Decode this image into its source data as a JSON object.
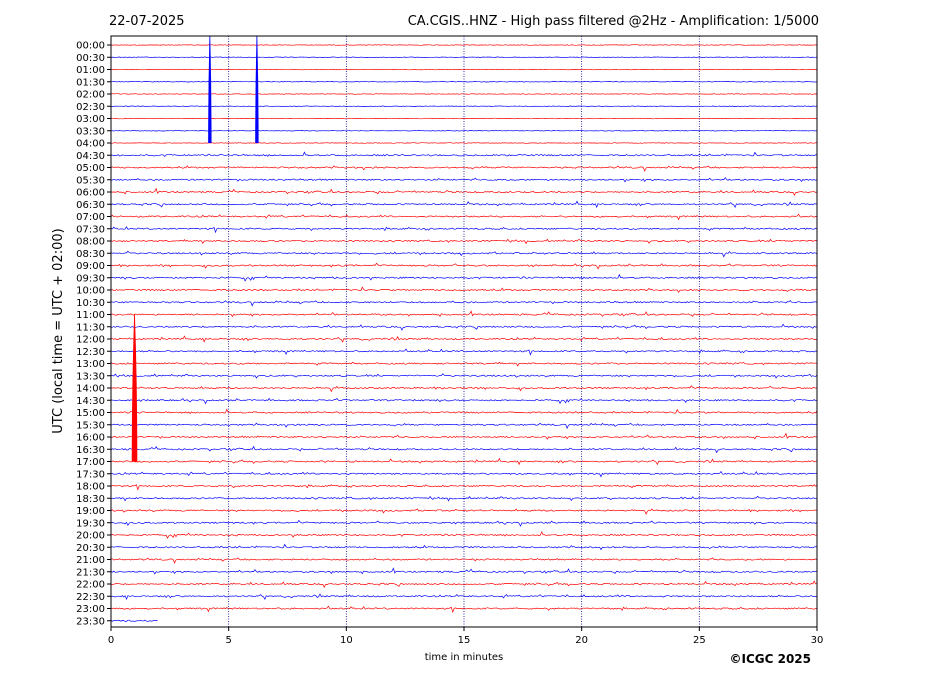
{
  "header": {
    "date": "22-07-2025",
    "title": "CA.CGIS..HNZ - High pass filtered @2Hz - Amplification: 1/5000"
  },
  "footer": {
    "copyright": "©ICGC 2025"
  },
  "colors": {
    "trace_a": "#ff0000",
    "trace_b": "#0000ff",
    "gridline": "#00008b",
    "frame": "#000000"
  },
  "chart_data": {
    "type": "line",
    "title": "CA.CGIS..HNZ - High pass filtered @2Hz - Amplification: 1/5000",
    "xlabel": "time in minutes",
    "ylabel": "UTC (local time = UTC + 02:00)",
    "xlim": [
      0,
      30
    ],
    "x_ticks": [
      "0",
      "5",
      "10",
      "15",
      "20",
      "25",
      "30"
    ],
    "vertical_gridlines_at": [
      5,
      10,
      15,
      20,
      25
    ],
    "rows": [
      "00:00",
      "00:30",
      "01:00",
      "01:30",
      "02:00",
      "02:30",
      "03:00",
      "03:30",
      "04:00",
      "04:30",
      "05:00",
      "05:30",
      "06:00",
      "06:30",
      "07:00",
      "07:30",
      "08:00",
      "08:30",
      "09:00",
      "09:30",
      "10:00",
      "10:30",
      "11:00",
      "11:30",
      "12:00",
      "12:30",
      "13:00",
      "13:30",
      "14:00",
      "14:30",
      "15:00",
      "15:30",
      "16:00",
      "16:30",
      "17:00",
      "17:30",
      "18:00",
      "18:30",
      "19:00",
      "19:30",
      "20:00",
      "20:30",
      "21:00",
      "21:30",
      "22:00",
      "22:30",
      "23:00",
      "23:30"
    ],
    "row_colors_alternate": [
      "red",
      "blue"
    ],
    "recorded_until": "23:30 row, minute 2",
    "notable_events": [
      {
        "row": "00:00",
        "minute": 4.2,
        "note": "large spike spanning rows 00:00-04:00"
      },
      {
        "row": "00:00",
        "minute": 6.2,
        "note": "large spike spanning rows 00:00-04:00"
      },
      {
        "row": "11:00",
        "minute": 1.0,
        "note": "large spike spanning rows 11:00-17:00"
      }
    ],
    "grid": true,
    "legend": "none"
  }
}
